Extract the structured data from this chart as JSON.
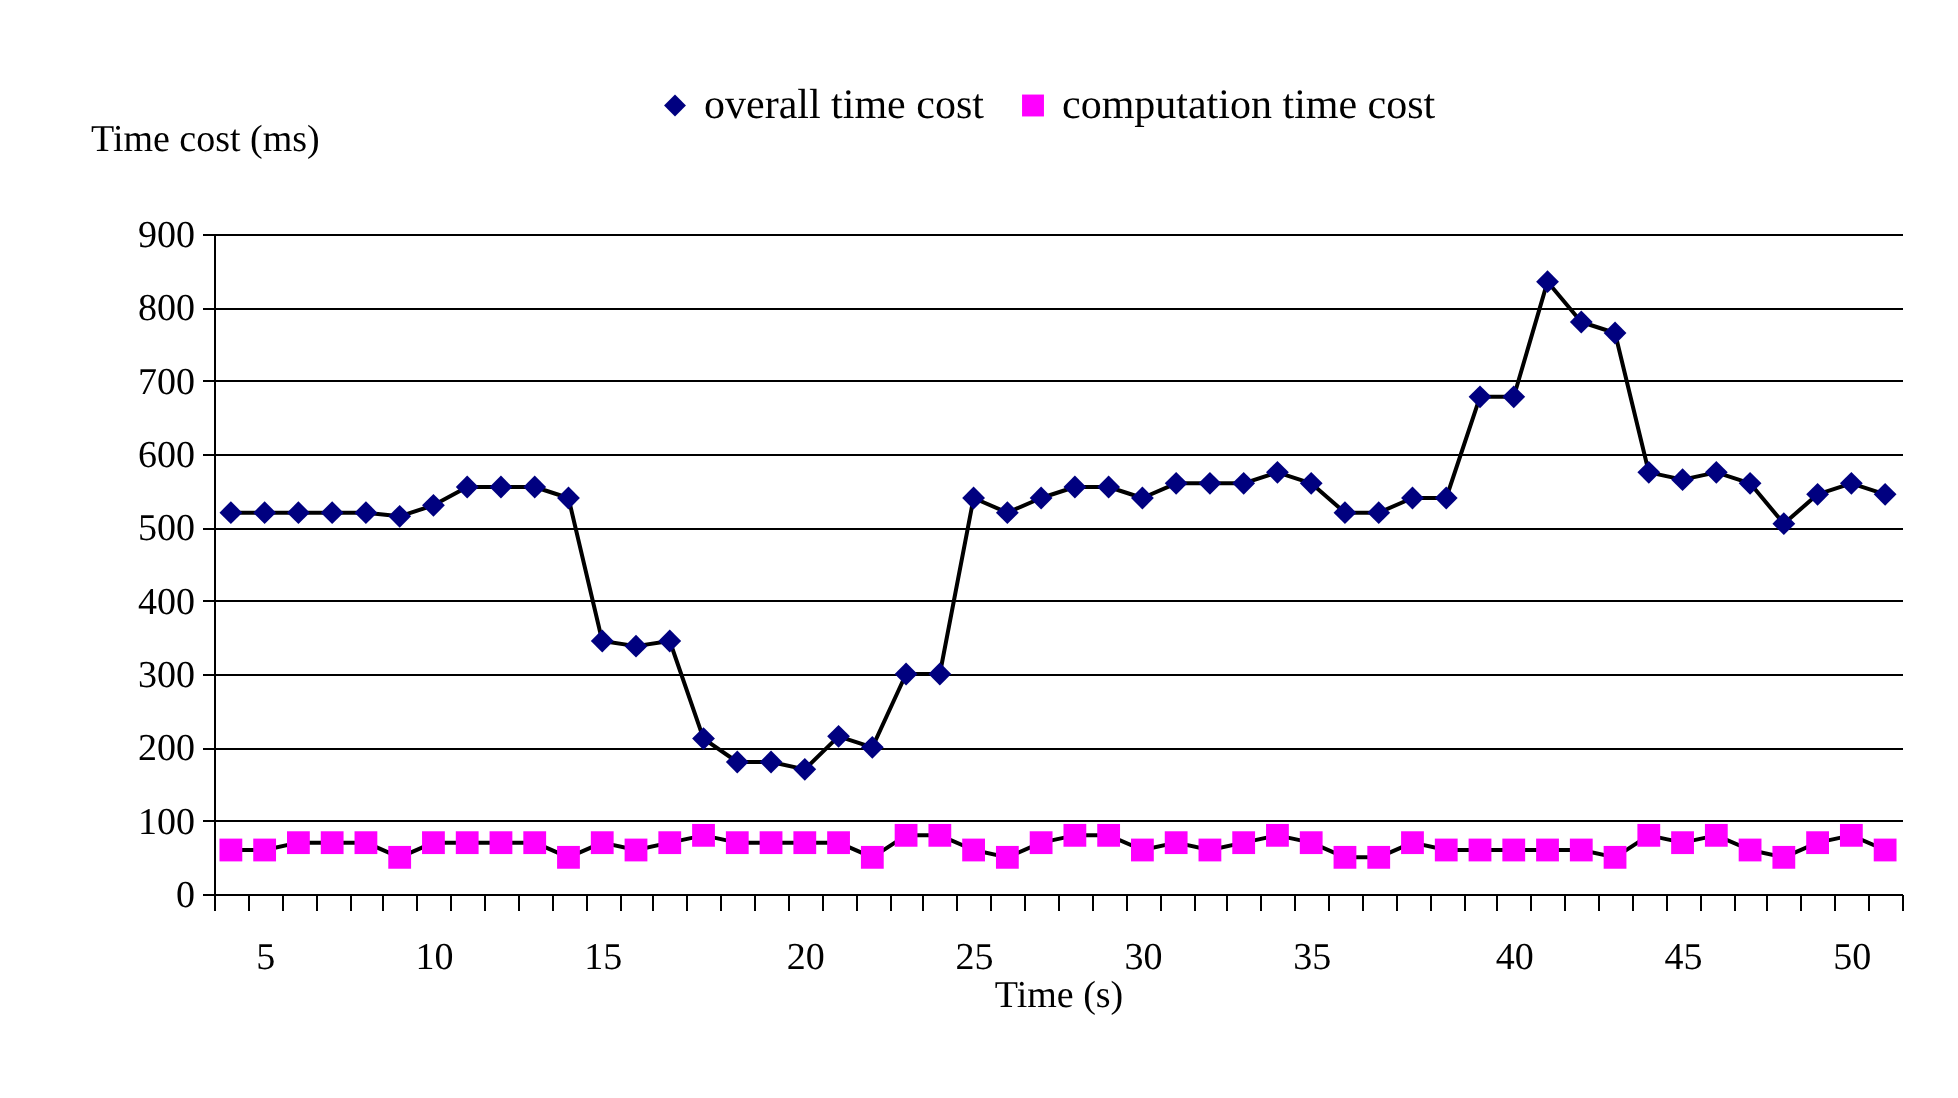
{
  "chart_data": {
    "type": "line",
    "ylabel": "Time cost (ms)",
    "xlabel": "Time (s)",
    "categories": [
      null,
      "5",
      null,
      null,
      null,
      null,
      "10",
      null,
      null,
      null,
      null,
      "15",
      null,
      null,
      null,
      null,
      null,
      "20",
      null,
      null,
      null,
      null,
      "25",
      null,
      null,
      null,
      null,
      "30",
      null,
      null,
      null,
      null,
      "35",
      null,
      null,
      null,
      null,
      null,
      "40",
      null,
      null,
      null,
      null,
      "45",
      null,
      null,
      null,
      null,
      "50",
      null
    ],
    "ylim": [
      0,
      900
    ],
    "yticks": [
      0,
      100,
      200,
      300,
      400,
      500,
      600,
      700,
      800,
      900
    ],
    "grid": "y",
    "legend": "top",
    "series": [
      {
        "name": "overall time cost",
        "color": "#000080",
        "marker": "diamond",
        "values": [
          520,
          520,
          520,
          520,
          520,
          515,
          530,
          555,
          555,
          555,
          540,
          345,
          338,
          345,
          212,
          180,
          180,
          170,
          215,
          200,
          300,
          300,
          540,
          520,
          540,
          555,
          555,
          540,
          560,
          560,
          560,
          575,
          560,
          520,
          520,
          540,
          540,
          678,
          678,
          835,
          780,
          765,
          575,
          565,
          575,
          560,
          505,
          545,
          560,
          545
        ]
      },
      {
        "name": "computation time cost",
        "color": "#ff00ff",
        "marker": "square",
        "values": [
          60,
          60,
          70,
          70,
          70,
          50,
          70,
          70,
          70,
          70,
          50,
          70,
          60,
          70,
          80,
          70,
          70,
          70,
          70,
          50,
          80,
          80,
          60,
          50,
          70,
          80,
          80,
          60,
          70,
          60,
          70,
          80,
          70,
          50,
          50,
          70,
          60,
          60,
          60,
          60,
          60,
          50,
          80,
          70,
          80,
          60,
          50,
          70,
          80,
          60
        ]
      }
    ]
  }
}
